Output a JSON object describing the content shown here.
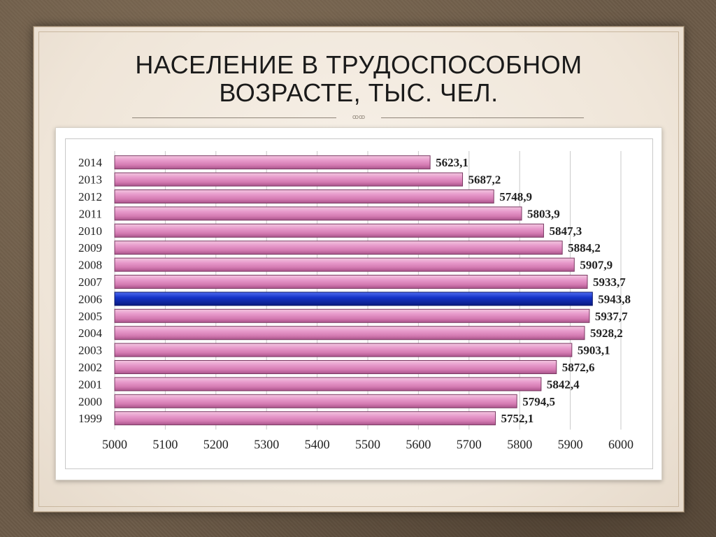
{
  "slide": {
    "title_line1": "НАСЕЛЕНИЕ В ТРУДОСПОСОБНОМ",
    "title_line2": "ВОЗРАСТЕ, ТЫС. ЧЕЛ."
  },
  "colors": {
    "bar": "#d77fb6",
    "bar_highlight": "#1533c8",
    "grid": "#c8c8c8"
  },
  "chart_data": {
    "type": "bar",
    "orientation": "horizontal",
    "title": "",
    "xlabel": "",
    "ylabel": "",
    "xlim": [
      5000,
      6000
    ],
    "x_ticks": [
      5000,
      5100,
      5200,
      5300,
      5400,
      5500,
      5600,
      5700,
      5800,
      5900,
      6000
    ],
    "grid": true,
    "categories": [
      "2014",
      "2013",
      "2012",
      "2011",
      "2010",
      "2009",
      "2008",
      "2007",
      "2006",
      "2005",
      "2004",
      "2003",
      "2002",
      "2001",
      "2000",
      "1999"
    ],
    "values": [
      5623.1,
      5687.2,
      5748.9,
      5803.9,
      5847.3,
      5884.2,
      5907.9,
      5933.7,
      5943.8,
      5937.7,
      5928.2,
      5903.1,
      5872.6,
      5842.4,
      5794.5,
      5752.1
    ],
    "value_labels": [
      "5623,1",
      "5687,2",
      "5748,9",
      "5803,9",
      "5847,3",
      "5884,2",
      "5907,9",
      "5933,7",
      "5943,8",
      "5937,7",
      "5928,2",
      "5903,1",
      "5872,6",
      "5842,4",
      "5794,5",
      "5752,1"
    ],
    "highlight_category": "2006"
  }
}
